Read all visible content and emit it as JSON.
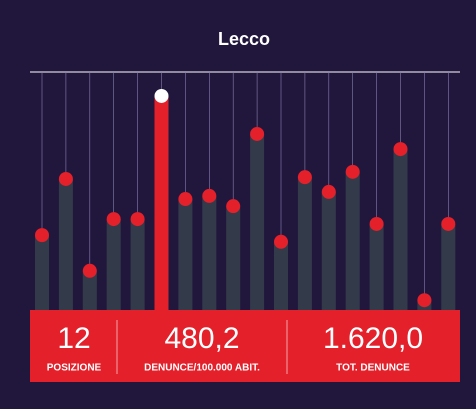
{
  "chart_data": {
    "type": "lollipop",
    "title": "Lecco",
    "values": [
      168,
      294,
      88,
      204,
      204,
      480.2,
      249,
      256,
      233,
      395,
      153,
      298,
      265,
      310,
      193,
      361,
      22,
      193
    ],
    "ylim": [
      0,
      534
    ],
    "highlight": 5,
    "color": "#333b4a",
    "dot_color": "#e4202a",
    "highlight_color": "#e4202a",
    "highlight_dot_color": "#ffffff"
  },
  "panel": [
    {
      "value": "12",
      "label": "POSIZIONE"
    },
    {
      "value": "480,2",
      "label": "DENUNCE/100.000 ABIT."
    },
    {
      "value": "1.620,0",
      "label": "TOT. DENUNCE"
    }
  ]
}
